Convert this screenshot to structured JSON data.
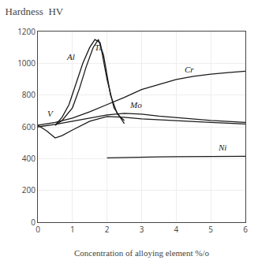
{
  "chart_data": {
    "type": "line",
    "title": "Hardness  HV",
    "x_label": "Concentration of alloying element %/o",
    "color": "#1a1a1a",
    "grid": true,
    "xlim": [
      0,
      6
    ],
    "ylim": [
      0,
      1200
    ],
    "xticks": [
      0,
      1,
      2,
      3,
      4,
      5,
      6
    ],
    "yticks": [
      0,
      200,
      400,
      600,
      800,
      1000,
      1200
    ],
    "series": [
      {
        "name": "Al",
        "x": [
          0.5,
          0.7,
          0.9,
          1.1,
          1.3,
          1.5,
          1.65,
          1.8,
          2.0,
          2.2,
          2.5
        ],
        "values": [
          610,
          660,
          740,
          870,
          1000,
          1100,
          1150,
          1130,
          900,
          720,
          620
        ]
      },
      {
        "name": "Ti",
        "x": [
          0.5,
          0.7,
          1.0,
          1.2,
          1.4,
          1.6,
          1.75,
          1.9,
          2.1,
          2.3,
          2.5
        ],
        "values": [
          610,
          640,
          720,
          840,
          980,
          1100,
          1150,
          1050,
          800,
          680,
          640
        ]
      },
      {
        "name": "V",
        "x": [
          0.0,
          0.25,
          0.5,
          0.7,
          1.0,
          1.5,
          2.0,
          2.5,
          3.0,
          4.0,
          5.0,
          6.0
        ],
        "values": [
          610,
          575,
          530,
          545,
          580,
          635,
          665,
          660,
          650,
          638,
          628,
          618
        ]
      },
      {
        "name": "Mo",
        "x": [
          0.0,
          0.5,
          1.0,
          1.5,
          2.0,
          2.5,
          3.0,
          3.5,
          4.0,
          5.0,
          6.0
        ],
        "values": [
          600,
          615,
          635,
          655,
          675,
          685,
          680,
          668,
          658,
          640,
          628
        ]
      },
      {
        "name": "Cr",
        "x": [
          0.0,
          0.5,
          1.0,
          1.5,
          2.0,
          2.5,
          3.0,
          3.5,
          4.0,
          4.5,
          5.0,
          5.5,
          6.0
        ],
        "values": [
          610,
          628,
          655,
          695,
          740,
          785,
          835,
          868,
          898,
          918,
          932,
          942,
          950
        ]
      },
      {
        "name": "Ni",
        "x": [
          2.0,
          2.5,
          3.0,
          3.5,
          4.0,
          4.5,
          5.0,
          5.5,
          6.0
        ],
        "values": [
          405,
          408,
          410,
          411,
          412,
          412,
          413,
          413,
          415
        ]
      }
    ],
    "annotations": [
      {
        "text": "Al",
        "x": 0.78,
        "y": 1000
      },
      {
        "text": "Ti",
        "x": 1.6,
        "y": 1060
      },
      {
        "text": "V",
        "x": 0.22,
        "y": 645
      },
      {
        "text": "Mo",
        "x": 2.6,
        "y": 700
      },
      {
        "text": "Cr",
        "x": 4.2,
        "y": 920
      },
      {
        "text": "Ni",
        "x": 5.15,
        "y": 430
      }
    ]
  }
}
